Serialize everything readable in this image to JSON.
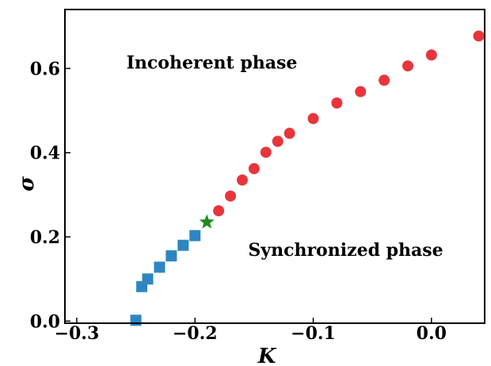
{
  "chart_data": {
    "type": "scatter",
    "title": "",
    "xlabel": "K",
    "ylabel": "σ",
    "xlim": [
      -0.31,
      0.045
    ],
    "ylim": [
      -0.005,
      0.74
    ],
    "grid": false,
    "xticks": [
      -0.3,
      -0.2,
      -0.1,
      0.0
    ],
    "xtick_labels": [
      "−0.3",
      "−0.2",
      "−0.1",
      "0.0"
    ],
    "yticks": [
      0.0,
      0.2,
      0.4,
      0.6
    ],
    "ytick_labels": [
      "0.0",
      "0.2",
      "0.4",
      "0.6"
    ],
    "series": [
      {
        "marker": "square",
        "color": "#2e86c1",
        "points": [
          [
            -0.25,
            0.002
          ],
          [
            -0.245,
            0.082
          ],
          [
            -0.24,
            0.1
          ],
          [
            -0.23,
            0.128
          ],
          [
            -0.22,
            0.155
          ],
          [
            -0.21,
            0.18
          ],
          [
            -0.2,
            0.203
          ]
        ]
      },
      {
        "marker": "star",
        "color": "#1e8c1e",
        "points": [
          [
            -0.19,
            0.235
          ]
        ]
      },
      {
        "marker": "circle",
        "color": "#e8353b",
        "points": [
          [
            -0.18,
            0.262
          ],
          [
            -0.17,
            0.297
          ],
          [
            -0.16,
            0.335
          ],
          [
            -0.15,
            0.362
          ],
          [
            -0.14,
            0.401
          ],
          [
            -0.13,
            0.427
          ],
          [
            -0.12,
            0.446
          ],
          [
            -0.1,
            0.481
          ],
          [
            -0.08,
            0.518
          ],
          [
            -0.06,
            0.545
          ],
          [
            -0.04,
            0.572
          ],
          [
            -0.02,
            0.606
          ],
          [
            0.0,
            0.632
          ],
          [
            0.04,
            0.677
          ]
        ]
      }
    ],
    "annotations": [
      {
        "text": "Incoherent phase",
        "x": -0.258,
        "y": 0.6
      },
      {
        "text": "Synchronized phase",
        "x": -0.155,
        "y": 0.155
      }
    ]
  }
}
